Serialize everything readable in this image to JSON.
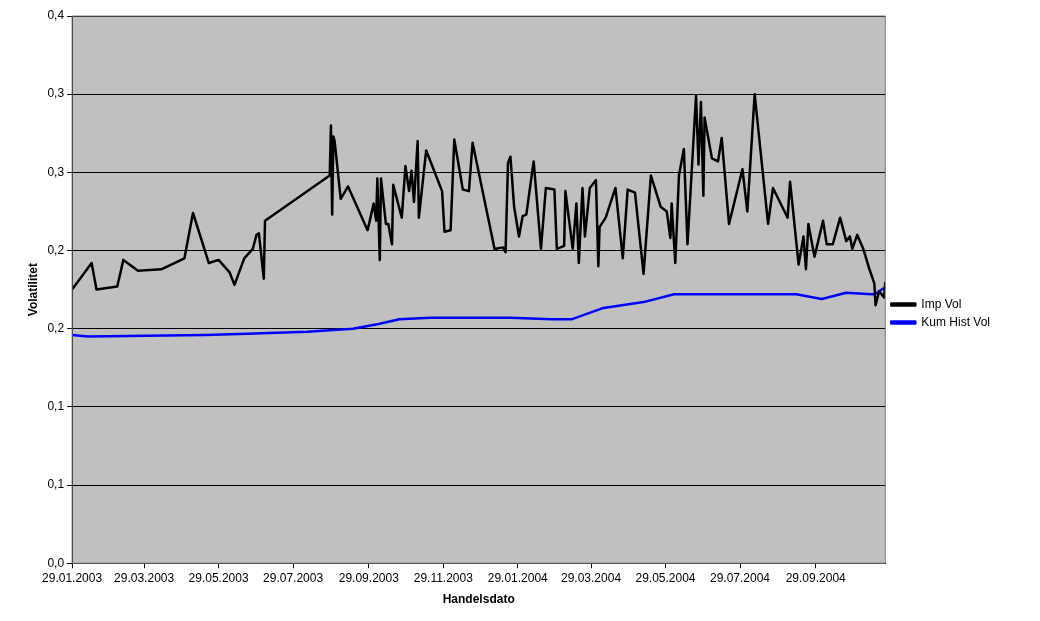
{
  "chart_data": {
    "type": "line",
    "xlabel": "Handelsdato",
    "ylabel": "Volatilitet",
    "xlim": [
      "2003-01-29",
      "2004-11-25"
    ],
    "xticks": [
      {
        "value": "2003-01-29",
        "label": "29.01.2003"
      },
      {
        "value": "2003-03-29",
        "label": "29.03.2003"
      },
      {
        "value": "2003-05-29",
        "label": "29.05.2003"
      },
      {
        "value": "2003-07-29",
        "label": "29.07.2003"
      },
      {
        "value": "2003-09-29",
        "label": "29.09.2003"
      },
      {
        "value": "2003-11-29",
        "label": "29.11.2003"
      },
      {
        "value": "2004-01-29",
        "label": "29.01.2004"
      },
      {
        "value": "2004-03-29",
        "label": "29.03.2004"
      },
      {
        "value": "2004-05-29",
        "label": "29.05.2004"
      },
      {
        "value": "2004-07-29",
        "label": "29.07.2004"
      },
      {
        "value": "2004-09-29",
        "label": "29.09.2004"
      }
    ],
    "ylim": [
      0,
      0.35
    ],
    "yticks": [
      {
        "value": 0,
        "label": "0,0"
      },
      {
        "value": 0.05,
        "label": "0,1"
      },
      {
        "value": 0.1,
        "label": "0,1"
      },
      {
        "value": 0.15,
        "label": "0,2"
      },
      {
        "value": 0.2,
        "label": "0,2"
      },
      {
        "value": 0.25,
        "label": "0,3"
      },
      {
        "value": 0.3,
        "label": "0,3"
      },
      {
        "value": 0.35,
        "label": "0,4"
      }
    ],
    "grid": "y",
    "legend": "right",
    "marker": "none",
    "line_style": "solid",
    "series": [
      {
        "name": "Imp Vol",
        "color": "#000000",
        "x": [
          "2003-01-29",
          "2003-02-14",
          "2003-02-18",
          "2003-03-07",
          "2003-03-12",
          "2003-03-24",
          "2003-04-12",
          "2003-05-01",
          "2003-05-08",
          "2003-05-21",
          "2003-05-29",
          "2003-06-07",
          "2003-06-11",
          "2003-06-19",
          "2003-06-26",
          "2003-06-29",
          "2003-07-01",
          "2003-07-05",
          "2003-07-06",
          "2003-08-28",
          "2003-08-29",
          "2003-08-30",
          "2003-08-31",
          "2003-09-01",
          "2003-09-06",
          "2003-09-12",
          "2003-09-28",
          "2003-10-03",
          "2003-10-05",
          "2003-10-06",
          "2003-10-08",
          "2003-10-09",
          "2003-10-13",
          "2003-10-15",
          "2003-10-18",
          "2003-10-19",
          "2003-10-26",
          "2003-10-29",
          "2003-11-01",
          "2003-11-03",
          "2003-11-05",
          "2003-11-08",
          "2003-11-09",
          "2003-11-15",
          "2003-11-28",
          "2003-11-30",
          "2003-12-05",
          "2003-12-08",
          "2003-12-15",
          "2003-12-20",
          "2003-12-23",
          "2004-01-10",
          "2004-01-17",
          "2004-01-19",
          "2004-01-21",
          "2004-01-23",
          "2004-01-26",
          "2004-01-30",
          "2004-02-02",
          "2004-02-05",
          "2004-02-11",
          "2004-02-17",
          "2004-02-21",
          "2004-02-28",
          "2004-03-01",
          "2004-03-07",
          "2004-03-08",
          "2004-03-14",
          "2004-03-17",
          "2004-03-19",
          "2004-03-22",
          "2004-03-24",
          "2004-03-28",
          "2004-04-02",
          "2004-04-04",
          "2004-04-05",
          "2004-04-10",
          "2004-04-18",
          "2004-04-24",
          "2004-04-28",
          "2004-05-04",
          "2004-05-11",
          "2004-05-17",
          "2004-05-25",
          "2004-05-30",
          "2004-06-02",
          "2004-06-03",
          "2004-06-06",
          "2004-06-09",
          "2004-06-13",
          "2004-06-16",
          "2004-06-23",
          "2004-06-25",
          "2004-06-27",
          "2004-06-29",
          "2004-06-30",
          "2004-07-06",
          "2004-07-11",
          "2004-07-14",
          "2004-07-20",
          "2004-07-31",
          "2004-08-04",
          "2004-08-10",
          "2004-08-21",
          "2004-08-25",
          "2004-09-06",
          "2004-09-08",
          "2004-09-15",
          "2004-09-19",
          "2004-09-21",
          "2004-09-23",
          "2004-09-28",
          "2004-10-05",
          "2004-10-08",
          "2004-10-13",
          "2004-10-19",
          "2004-10-24",
          "2004-10-27",
          "2004-10-29",
          "2004-11-02",
          "2004-11-07",
          "2004-11-12",
          "2004-11-16",
          "2004-11-17",
          "2004-11-20",
          "2004-11-24",
          "2004-11-25"
        ],
        "values": [
          0.175,
          0.192,
          0.175,
          0.177,
          0.194,
          0.187,
          0.188,
          0.195,
          0.224,
          0.192,
          0.194,
          0.186,
          0.178,
          0.195,
          0.201,
          0.21,
          0.211,
          0.182,
          0.219,
          0.248,
          0.28,
          0.223,
          0.273,
          0.27,
          0.233,
          0.241,
          0.213,
          0.23,
          0.219,
          0.246,
          0.194,
          0.246,
          0.217,
          0.217,
          0.204,
          0.242,
          0.221,
          0.254,
          0.238,
          0.251,
          0.231,
          0.27,
          0.221,
          0.264,
          0.238,
          0.212,
          0.213,
          0.271,
          0.239,
          0.238,
          0.269,
          0.201,
          0.202,
          0.199,
          0.256,
          0.26,
          0.228,
          0.209,
          0.222,
          0.223,
          0.257,
          0.201,
          0.24,
          0.239,
          0.201,
          0.203,
          0.238,
          0.201,
          0.23,
          0.192,
          0.24,
          0.209,
          0.24,
          0.245,
          0.19,
          0.215,
          0.221,
          0.24,
          0.195,
          0.239,
          0.237,
          0.185,
          0.248,
          0.228,
          0.225,
          0.208,
          0.23,
          0.192,
          0.248,
          0.265,
          0.204,
          0.299,
          0.255,
          0.295,
          0.235,
          0.285,
          0.259,
          0.257,
          0.272,
          0.217,
          0.252,
          0.225,
          0.3,
          0.217,
          0.24,
          0.221,
          0.244,
          0.191,
          0.209,
          0.188,
          0.217,
          0.196,
          0.219,
          0.204,
          0.204,
          0.221,
          0.206,
          0.209,
          0.201,
          0.21,
          0.201,
          0.188,
          0.179,
          0.165,
          0.174,
          0.17,
          0.18
        ]
      },
      {
        "name": "Kum Hist Vol",
        "color": "#0000ff",
        "x": [
          "2003-01-29",
          "2003-02-11",
          "2003-05-18",
          "2003-08-10",
          "2003-08-28",
          "2003-09-16",
          "2003-10-07",
          "2003-10-24",
          "2003-11-18",
          "2004-01-23",
          "2004-02-26",
          "2004-03-13",
          "2004-04-07",
          "2004-05-11",
          "2004-06-05",
          "2004-07-08",
          "2004-09-13",
          "2004-10-04",
          "2004-10-24",
          "2004-11-14",
          "2004-11-16",
          "2004-11-24"
        ],
        "values": [
          0.146,
          0.145,
          0.146,
          0.148,
          0.149,
          0.15,
          0.153,
          0.156,
          0.157,
          0.157,
          0.156,
          0.156,
          0.163,
          0.167,
          0.172,
          0.172,
          0.172,
          0.169,
          0.173,
          0.172,
          0.172,
          0.176
        ]
      }
    ]
  }
}
